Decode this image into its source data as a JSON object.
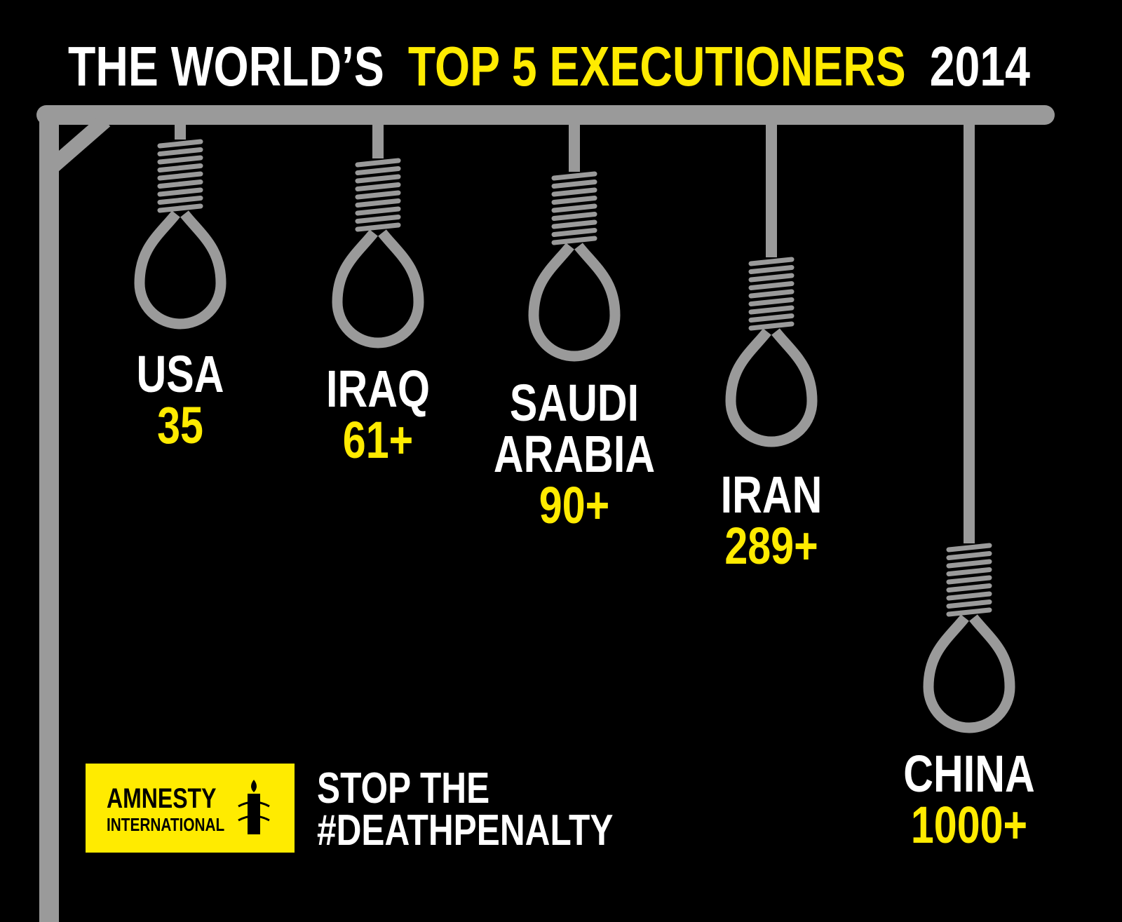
{
  "title": {
    "before": "THE WORLD’S",
    "highlight": "TOP 5 EXECUTIONERS",
    "after": "2014"
  },
  "items": [
    {
      "name": [
        "USA"
      ],
      "count": "35"
    },
    {
      "name": [
        "IRAQ"
      ],
      "count": "61+"
    },
    {
      "name": [
        "SAUDI",
        "ARABIA"
      ],
      "count": "90+"
    },
    {
      "name": [
        "IRAN"
      ],
      "count": "289+"
    },
    {
      "name": [
        "CHINA"
      ],
      "count": "1000+"
    }
  ],
  "logo": {
    "line1": "AMNESTY",
    "line2": "INTERNATIONAL"
  },
  "slogan": [
    "STOP THE",
    "#DEATHPENALTY"
  ]
}
